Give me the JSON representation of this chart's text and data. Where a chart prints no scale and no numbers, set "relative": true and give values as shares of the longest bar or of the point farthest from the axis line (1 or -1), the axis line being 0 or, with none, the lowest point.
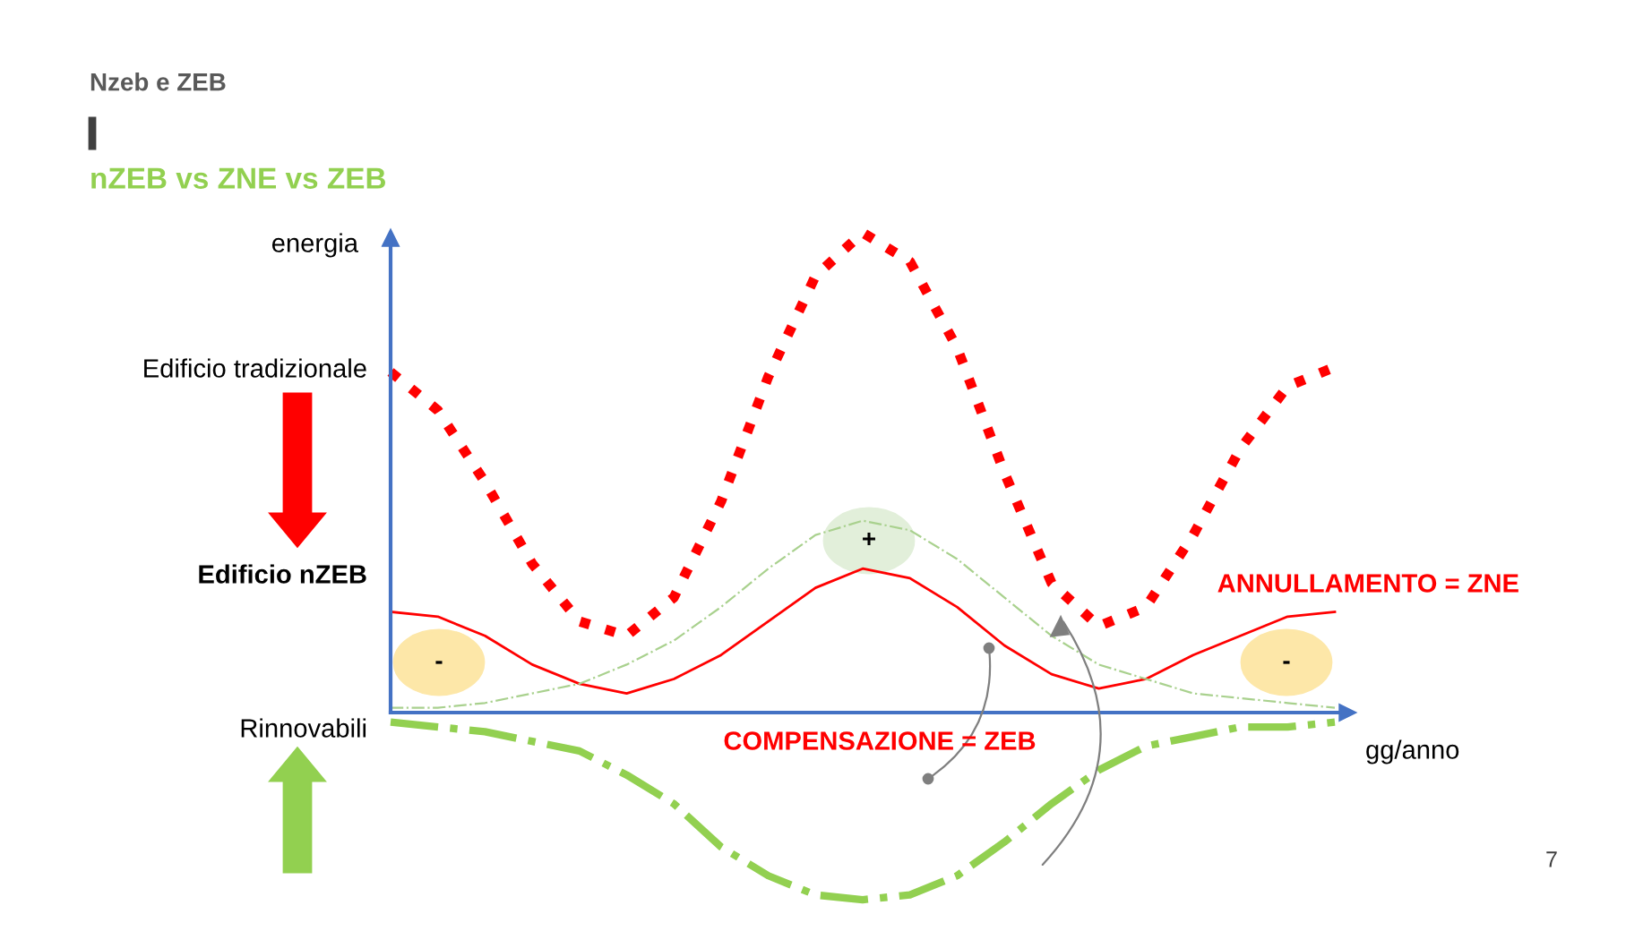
{
  "chart_data": {
    "type": "line",
    "relative": true,
    "title": "Nzeb e ZEB",
    "subtitle": "nZEB vs ZNE vs ZEB",
    "ylabel": "energia",
    "xlabel": "gg/anno",
    "categories": [
      null,
      null,
      null,
      null,
      null,
      null,
      null,
      null,
      null,
      null,
      null,
      null,
      null,
      null,
      null,
      null,
      null,
      null,
      null,
      null,
      null
    ],
    "series": [
      {
        "color": "#ff0000",
        "line_style": "dotted",
        "values": [
          0.71,
          0.63,
          0.48,
          0.31,
          0.19,
          0.16,
          0.24,
          0.44,
          0.7,
          0.91,
          1.0,
          0.94,
          0.76,
          0.5,
          0.27,
          0.18,
          0.22,
          0.37,
          0.55,
          0.68,
          0.72
        ]
      },
      {
        "color": "#ff0000",
        "line_style": "solid",
        "values": [
          0.21,
          0.2,
          0.16,
          0.1,
          0.06,
          0.04,
          0.07,
          0.12,
          0.19,
          0.26,
          0.3,
          0.28,
          0.22,
          0.14,
          0.08,
          0.05,
          0.07,
          0.12,
          0.16,
          0.2,
          0.21
        ]
      },
      {
        "color": "#a9d18e",
        "line_style": "dashdot",
        "values": [
          0.01,
          0.01,
          0.02,
          0.04,
          0.06,
          0.1,
          0.15,
          0.22,
          0.3,
          0.37,
          0.4,
          0.38,
          0.32,
          0.24,
          0.16,
          0.1,
          0.07,
          0.04,
          0.03,
          0.02,
          0.01
        ]
      },
      {
        "color": "#92d050",
        "line_style": "dashdot",
        "values": [
          -0.02,
          -0.03,
          -0.04,
          -0.06,
          -0.08,
          -0.13,
          -0.19,
          -0.28,
          -0.34,
          -0.38,
          -0.39,
          -0.38,
          -0.34,
          -0.27,
          -0.19,
          -0.12,
          -0.07,
          -0.05,
          -0.03,
          -0.03,
          -0.02
        ]
      }
    ],
    "annotations": [
      "Edificio tradizionale",
      "Edificio nZEB",
      "Rinnovabili",
      "ANNULLAMENTO = ZNE",
      "COMPENSAZIONE = ZEB",
      "+",
      "-",
      "-",
      "7"
    ],
    "ref_lines": [
      {
        "axis": "y",
        "value": 0,
        "color": "#4472c4"
      }
    ],
    "marker": "none"
  }
}
